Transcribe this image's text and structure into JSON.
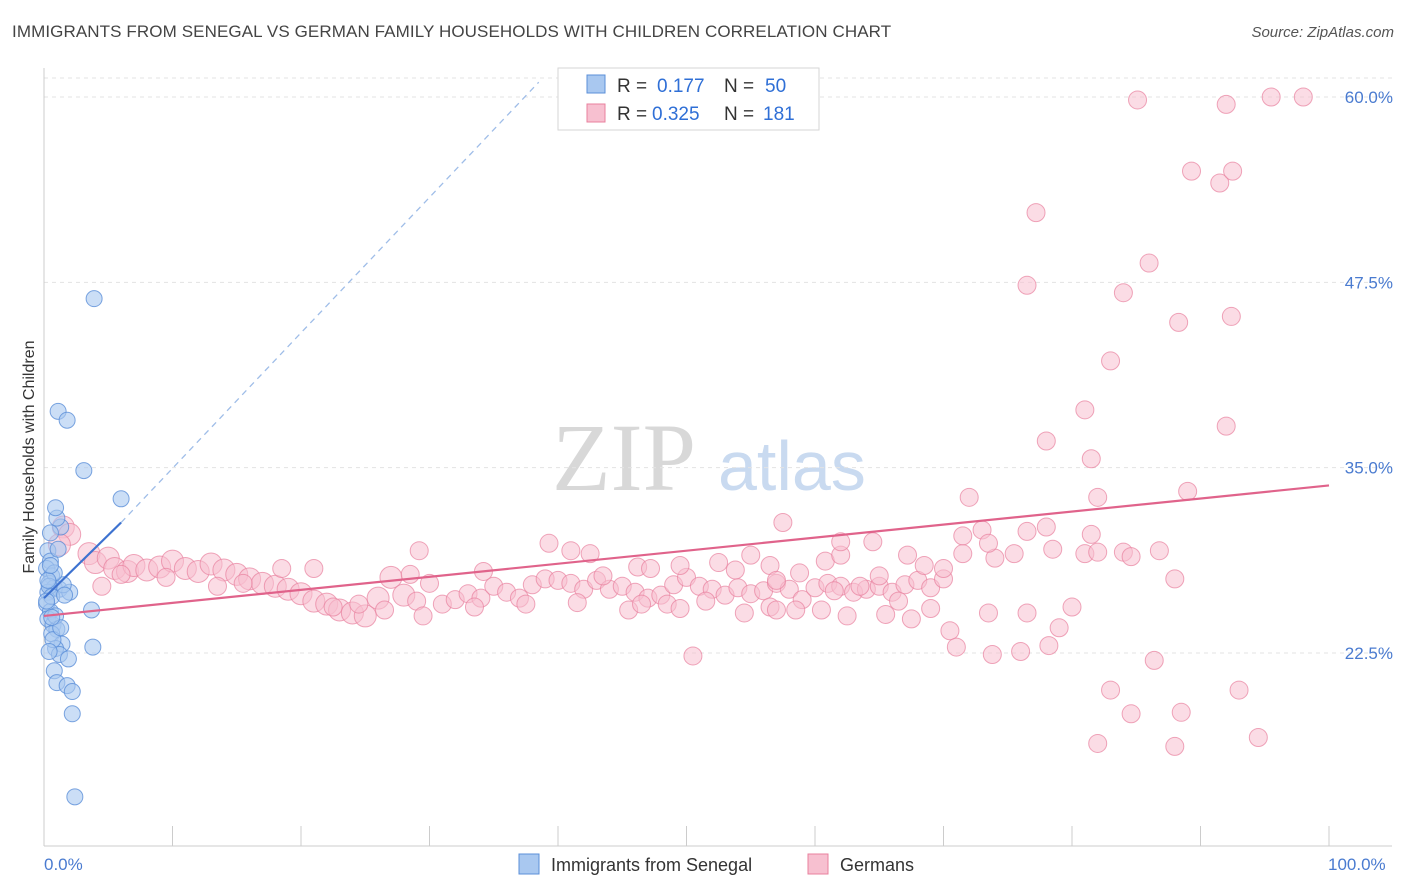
{
  "title": "IMMIGRANTS FROM SENEGAL VS GERMAN FAMILY HOUSEHOLDS WITH CHILDREN CORRELATION CHART",
  "source": "Source: ZipAtlas.com",
  "watermark": {
    "zip": "ZIP",
    "atlas": "atlas"
  },
  "legend": {
    "r_label": "R =",
    "n_label": "N =",
    "series": [
      {
        "r": "0.177",
        "n": "50",
        "color": "#a9c8f0",
        "stroke": "#5b8fd8"
      },
      {
        "r": "0.325",
        "n": "181",
        "color": "#f7c0d0",
        "stroke": "#e8809e"
      }
    ]
  },
  "chart_data": {
    "type": "scatter",
    "title": "IMMIGRANTS FROM SENEGAL VS GERMAN FAMILY HOUSEHOLDS WITH CHILDREN CORRELATION CHART",
    "xlabel": "",
    "ylabel": "Family Households with Children",
    "xlim": [
      0,
      100
    ],
    "ylim": [
      10,
      62
    ],
    "x_tick_labels": [
      "0.0%",
      "100.0%"
    ],
    "y_ticks": [
      22.5,
      35.0,
      47.5,
      60.0
    ],
    "y_tick_labels": [
      "22.5%",
      "35.0%",
      "47.5%",
      "60.0%"
    ],
    "grid": true,
    "legend_position": "top-center",
    "series": [
      {
        "name": "Immigrants from Senegal",
        "color": "#a9c8f0",
        "stroke": "#5b8fd8",
        "trend": {
          "x0": 0,
          "y0": 26.2,
          "x1": 6.0,
          "y1": 31.3,
          "dash_to_x": 38.5,
          "dash_to_y": 61.0
        },
        "points": [
          [
            0.3,
            29.4
          ],
          [
            0.5,
            28.7
          ],
          [
            0.2,
            28.2
          ],
          [
            0.6,
            27.7
          ],
          [
            0.4,
            27.2
          ],
          [
            0.8,
            26.9
          ],
          [
            0.3,
            26.6
          ],
          [
            1.2,
            26.8
          ],
          [
            0.2,
            25.8
          ],
          [
            0.5,
            25.3
          ],
          [
            0.3,
            24.8
          ],
          [
            0.7,
            24.4
          ],
          [
            1.0,
            24.1
          ],
          [
            0.6,
            23.8
          ],
          [
            1.4,
            23.1
          ],
          [
            0.9,
            22.8
          ],
          [
            1.2,
            22.4
          ],
          [
            0.8,
            21.3
          ],
          [
            1.0,
            20.5
          ],
          [
            1.8,
            20.3
          ],
          [
            2.2,
            19.9
          ],
          [
            2.2,
            18.4
          ],
          [
            2.4,
            12.8
          ],
          [
            3.8,
            22.9
          ],
          [
            3.7,
            25.4
          ],
          [
            2.0,
            26.6
          ],
          [
            1.5,
            27.1
          ],
          [
            0.8,
            27.9
          ],
          [
            1.1,
            29.5
          ],
          [
            1.3,
            31.0
          ],
          [
            1.0,
            31.6
          ],
          [
            0.9,
            32.3
          ],
          [
            0.5,
            30.6
          ],
          [
            1.1,
            38.8
          ],
          [
            1.8,
            38.2
          ],
          [
            3.1,
            34.8
          ],
          [
            6.0,
            32.9
          ],
          [
            3.9,
            46.4
          ],
          [
            0.4,
            27.0
          ],
          [
            0.6,
            26.3
          ],
          [
            0.3,
            27.4
          ],
          [
            0.5,
            28.4
          ],
          [
            0.7,
            23.4
          ],
          [
            1.6,
            26.4
          ],
          [
            0.9,
            25.0
          ],
          [
            1.3,
            24.2
          ],
          [
            0.4,
            22.6
          ],
          [
            1.9,
            22.1
          ],
          [
            0.2,
            26.0
          ],
          [
            0.6,
            24.9
          ]
        ]
      },
      {
        "name": "Germans",
        "color": "#f7c0d0",
        "stroke": "#e8809e",
        "trend": {
          "x0": 0,
          "y0": 25.0,
          "x1": 100,
          "y1": 33.8
        },
        "points": [
          [
            1.5,
            31.0
          ],
          [
            2.0,
            30.5
          ],
          [
            1.2,
            29.8
          ],
          [
            3.5,
            29.2
          ],
          [
            4.0,
            28.6
          ],
          [
            5.0,
            28.9
          ],
          [
            5.5,
            28.2
          ],
          [
            6.5,
            28.0
          ],
          [
            7.0,
            28.4
          ],
          [
            8.0,
            28.1
          ],
          [
            9.0,
            28.3
          ],
          [
            10.0,
            28.7
          ],
          [
            11.0,
            28.2
          ],
          [
            12.0,
            28.0
          ],
          [
            13.0,
            28.5
          ],
          [
            14.0,
            28.1
          ],
          [
            15.0,
            27.8
          ],
          [
            16.0,
            27.5
          ],
          [
            17.0,
            27.2
          ],
          [
            18.0,
            27.0
          ],
          [
            19.0,
            26.8
          ],
          [
            20.0,
            26.5
          ],
          [
            21.0,
            26.0
          ],
          [
            22.0,
            25.8
          ],
          [
            23.0,
            25.4
          ],
          [
            24.0,
            25.2
          ],
          [
            25.0,
            25.0
          ],
          [
            26.0,
            26.2
          ],
          [
            27.0,
            27.6
          ],
          [
            28.0,
            26.4
          ],
          [
            29.0,
            26.0
          ],
          [
            30.0,
            27.2
          ],
          [
            31.0,
            25.8
          ],
          [
            32.0,
            26.1
          ],
          [
            33.0,
            26.5
          ],
          [
            34.0,
            26.2
          ],
          [
            35.0,
            27.0
          ],
          [
            36.0,
            26.6
          ],
          [
            37.0,
            26.2
          ],
          [
            38.0,
            27.1
          ],
          [
            39.0,
            27.5
          ],
          [
            40.0,
            27.4
          ],
          [
            41.0,
            27.2
          ],
          [
            42.0,
            26.8
          ],
          [
            43.0,
            27.4
          ],
          [
            44.0,
            26.8
          ],
          [
            45.0,
            27.0
          ],
          [
            46.0,
            26.6
          ],
          [
            47.0,
            26.2
          ],
          [
            48.0,
            26.4
          ],
          [
            49.0,
            27.1
          ],
          [
            50.0,
            27.6
          ],
          [
            51.0,
            27.0
          ],
          [
            52.0,
            26.8
          ],
          [
            53.0,
            26.4
          ],
          [
            54.0,
            26.9
          ],
          [
            55.0,
            26.5
          ],
          [
            56.0,
            26.7
          ],
          [
            57.0,
            27.2
          ],
          [
            58.0,
            26.8
          ],
          [
            59.0,
            26.1
          ],
          [
            60.0,
            26.9
          ],
          [
            61.0,
            27.2
          ],
          [
            62.0,
            27.0
          ],
          [
            63.0,
            26.6
          ],
          [
            64.0,
            26.8
          ],
          [
            65.0,
            27.0
          ],
          [
            66.0,
            26.6
          ],
          [
            67.0,
            27.1
          ],
          [
            68.0,
            27.4
          ],
          [
            69.0,
            26.9
          ],
          [
            70.0,
            27.5
          ],
          [
            4.5,
            27.0
          ],
          [
            6.0,
            27.8
          ],
          [
            9.5,
            27.6
          ],
          [
            13.5,
            27.0
          ],
          [
            15.5,
            27.2
          ],
          [
            18.5,
            28.2
          ],
          [
            22.5,
            25.6
          ],
          [
            24.5,
            25.8
          ],
          [
            26.5,
            25.4
          ],
          [
            29.5,
            25.0
          ],
          [
            33.5,
            25.6
          ],
          [
            37.5,
            25.8
          ],
          [
            41.5,
            25.9
          ],
          [
            45.5,
            25.4
          ],
          [
            46.5,
            25.8
          ],
          [
            48.5,
            25.8
          ],
          [
            49.5,
            25.5
          ],
          [
            51.5,
            26.0
          ],
          [
            54.5,
            25.2
          ],
          [
            56.5,
            25.6
          ],
          [
            58.5,
            25.4
          ],
          [
            60.5,
            25.4
          ],
          [
            62.5,
            25.0
          ],
          [
            65.5,
            25.1
          ],
          [
            67.5,
            24.8
          ],
          [
            70.5,
            24.0
          ],
          [
            73.5,
            25.2
          ],
          [
            76.5,
            25.2
          ],
          [
            21.0,
            28.2
          ],
          [
            28.5,
            27.8
          ],
          [
            29.2,
            29.4
          ],
          [
            34.2,
            28.0
          ],
          [
            39.3,
            29.9
          ],
          [
            41.0,
            29.4
          ],
          [
            42.5,
            29.2
          ],
          [
            43.5,
            27.7
          ],
          [
            46.2,
            28.3
          ],
          [
            47.2,
            28.2
          ],
          [
            49.5,
            28.4
          ],
          [
            52.5,
            28.6
          ],
          [
            53.8,
            28.1
          ],
          [
            56.5,
            28.4
          ],
          [
            58.8,
            27.9
          ],
          [
            60.8,
            28.7
          ],
          [
            62.0,
            29.1
          ],
          [
            65.0,
            27.7
          ],
          [
            67.2,
            29.1
          ],
          [
            70.0,
            28.2
          ],
          [
            71.5,
            29.2
          ],
          [
            74.0,
            28.9
          ],
          [
            75.5,
            29.2
          ],
          [
            78.5,
            29.5
          ],
          [
            81.0,
            29.2
          ],
          [
            82.0,
            29.3
          ],
          [
            84.0,
            29.3
          ],
          [
            84.6,
            29.0
          ],
          [
            86.8,
            29.4
          ],
          [
            64.5,
            30.0
          ],
          [
            68.5,
            28.4
          ],
          [
            71.5,
            30.4
          ],
          [
            73.0,
            30.8
          ],
          [
            76.5,
            30.7
          ],
          [
            78.0,
            31.0
          ],
          [
            81.5,
            30.5
          ],
          [
            88.0,
            27.5
          ],
          [
            73.5,
            29.9
          ],
          [
            55.0,
            29.1
          ],
          [
            57.0,
            27.4
          ],
          [
            61.5,
            26.7
          ],
          [
            63.5,
            27.0
          ],
          [
            66.5,
            26.0
          ],
          [
            69.0,
            25.5
          ],
          [
            71.0,
            22.9
          ],
          [
            73.8,
            22.4
          ],
          [
            76.0,
            22.6
          ],
          [
            78.2,
            23.0
          ],
          [
            79.0,
            24.2
          ],
          [
            80.0,
            25.6
          ],
          [
            72.0,
            33.0
          ],
          [
            82.0,
            33.0
          ],
          [
            89.0,
            33.4
          ],
          [
            78.0,
            36.8
          ],
          [
            81.5,
            35.6
          ],
          [
            81.0,
            38.9
          ],
          [
            92.0,
            37.8
          ],
          [
            83.0,
            42.2
          ],
          [
            84.0,
            46.8
          ],
          [
            76.5,
            47.3
          ],
          [
            86.0,
            48.8
          ],
          [
            88.3,
            44.8
          ],
          [
            92.4,
            45.2
          ],
          [
            77.2,
            52.2
          ],
          [
            85.1,
            59.8
          ],
          [
            89.3,
            55.0
          ],
          [
            91.5,
            54.2
          ],
          [
            92.0,
            59.5
          ],
          [
            92.5,
            55.0
          ],
          [
            95.5,
            60.0
          ],
          [
            98.0,
            60.0
          ],
          [
            93.0,
            20.0
          ],
          [
            94.5,
            16.8
          ],
          [
            86.4,
            22.0
          ],
          [
            83.0,
            20.0
          ],
          [
            84.6,
            18.4
          ],
          [
            82.0,
            16.4
          ],
          [
            88.0,
            16.2
          ],
          [
            88.5,
            18.5
          ],
          [
            57.0,
            25.4
          ],
          [
            50.5,
            22.3
          ],
          [
            62.0,
            30.0
          ],
          [
            57.5,
            31.3
          ]
        ]
      }
    ]
  }
}
